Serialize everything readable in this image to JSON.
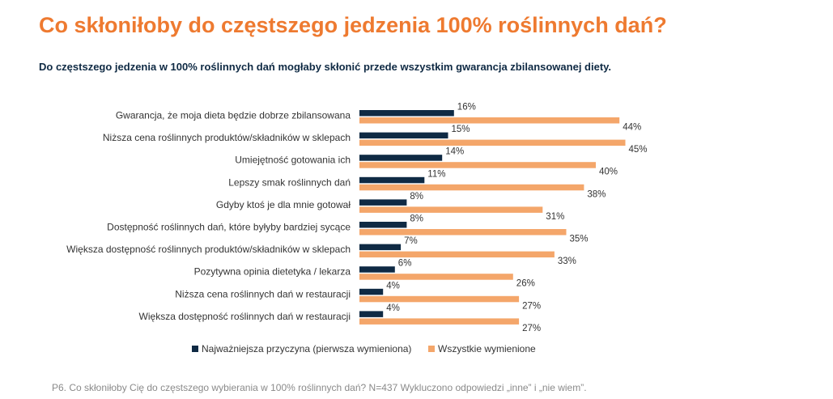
{
  "title": "Co skłoniłoby do częstszego jedzenia 100% roślinnych dań?",
  "subtitle": "Do częstszego jedzenia w 100% roślinnych dań mogłaby skłonić przede wszystkim gwarancja zbilansowanej diety.",
  "footnote": "P6. Co skłoniłoby Cię do częstszego wybierania w 100% roślinnych dań? N=437 Wykluczono odpowiedzi „inne” i „nie wiem”.",
  "colors": {
    "title": "#ee7a30",
    "subtitle": "#0f2a44",
    "series_primary": "#0f2a44",
    "series_all": "#f4a66a"
  },
  "chart_data": {
    "type": "bar",
    "orientation": "horizontal",
    "categories": [
      "Gwarancja, że moja dieta będzie dobrze zbilansowana",
      "Niższa cena roślinnych produktów/składników w sklepach",
      "Umiejętność gotowania ich",
      "Lepszy smak roślinnych dań",
      "Gdyby ktoś je dla mnie gotował",
      "Dostępność roślinnych dań, które byłyby bardziej sycące",
      "Większa dostępność roślinnych produktów/składników w sklepach",
      "Pozytywna opinia dietetyka / lekarza",
      "Niższa cena roślinnych dań w restauracji",
      "Większa dostępność roślinnych dań w restauracji"
    ],
    "series": [
      {
        "name": "Najważniejsza przyczyna (pierwsza wymieniona)",
        "values": [
          16,
          15,
          14,
          11,
          8,
          8,
          7,
          6,
          4,
          4
        ],
        "color": "#0f2a44"
      },
      {
        "name": "Wszystkie wymienione",
        "values": [
          44,
          45,
          40,
          38,
          31,
          35,
          33,
          26,
          27,
          27
        ],
        "color": "#f4a66a"
      }
    ],
    "value_suffix": "%",
    "xlim": [
      0,
      50
    ],
    "grid": false,
    "legend_position": "bottom-center"
  }
}
